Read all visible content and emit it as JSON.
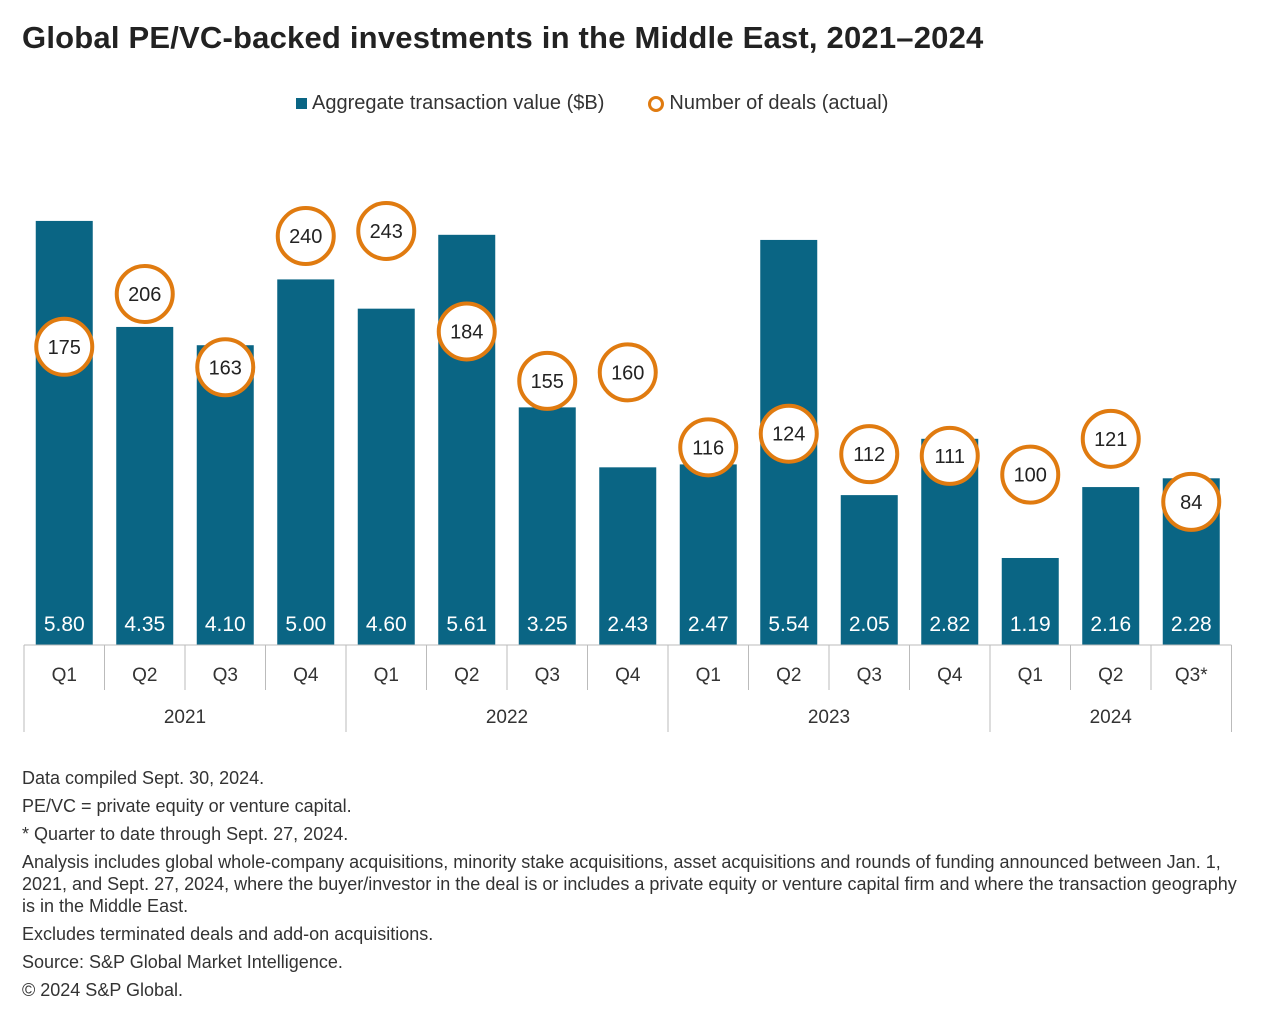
{
  "chart_data": {
    "type": "bar",
    "title": "Global PE/VC-backed investments in the Middle East, 2021–2024",
    "legend": {
      "value": "Aggregate transaction value ($B)",
      "deals": "Number of deals (actual)"
    },
    "legend_position": "top-center",
    "categories": [
      "Q1",
      "Q2",
      "Q3",
      "Q4",
      "Q1",
      "Q2",
      "Q3",
      "Q4",
      "Q1",
      "Q2",
      "Q3",
      "Q4",
      "Q1",
      "Q2",
      "Q3*"
    ],
    "years": [
      {
        "label": "2021",
        "span": 4
      },
      {
        "label": "2022",
        "span": 4
      },
      {
        "label": "2023",
        "span": 4
      },
      {
        "label": "2024",
        "span": 3
      }
    ],
    "series": [
      {
        "name": "Aggregate transaction value ($B)",
        "type": "bar",
        "color": "#0a6584",
        "labels": [
          "5.80",
          "4.35",
          "4.10",
          "5.00",
          "4.60",
          "5.61",
          "3.25",
          "2.43",
          "2.47",
          "5.54",
          "2.05",
          "2.82",
          "1.19",
          "2.16",
          "2.28"
        ],
        "values": [
          5.8,
          4.35,
          4.1,
          5.0,
          4.6,
          5.61,
          3.25,
          2.43,
          2.47,
          5.54,
          2.05,
          2.82,
          1.19,
          2.16,
          2.28
        ]
      },
      {
        "name": "Number of deals (actual)",
        "type": "scatter",
        "color": "#e07b10",
        "labels": [
          "175",
          "206",
          "163",
          "240",
          "243",
          "184",
          "155",
          "160",
          "116",
          "124",
          "112",
          "111",
          "100",
          "121",
          "84"
        ],
        "values": [
          175,
          206,
          163,
          240,
          243,
          184,
          155,
          160,
          116,
          124,
          112,
          111,
          100,
          121,
          84
        ]
      }
    ],
    "ylim": [
      0,
      6.77
    ],
    "y2lim": [
      0,
      290.5
    ],
    "grid": false
  },
  "notes": [
    "Data compiled Sept. 30, 2024.",
    "PE/VC = private equity or venture capital.",
    "* Quarter to date through Sept. 27, 2024.",
    "Analysis includes global whole-company acquisitions, minority stake acquisitions, asset acquisitions and rounds of funding announced between Jan. 1, 2021, and Sept. 27, 2024, where the buyer/investor in the deal is or includes a private equity or venture capital firm and where the transaction geography is in the Middle East.",
    "Excludes terminated deals and add-on acquisitions.",
    "Source: S&P Global Market Intelligence.",
    "© 2024 S&P Global."
  ]
}
